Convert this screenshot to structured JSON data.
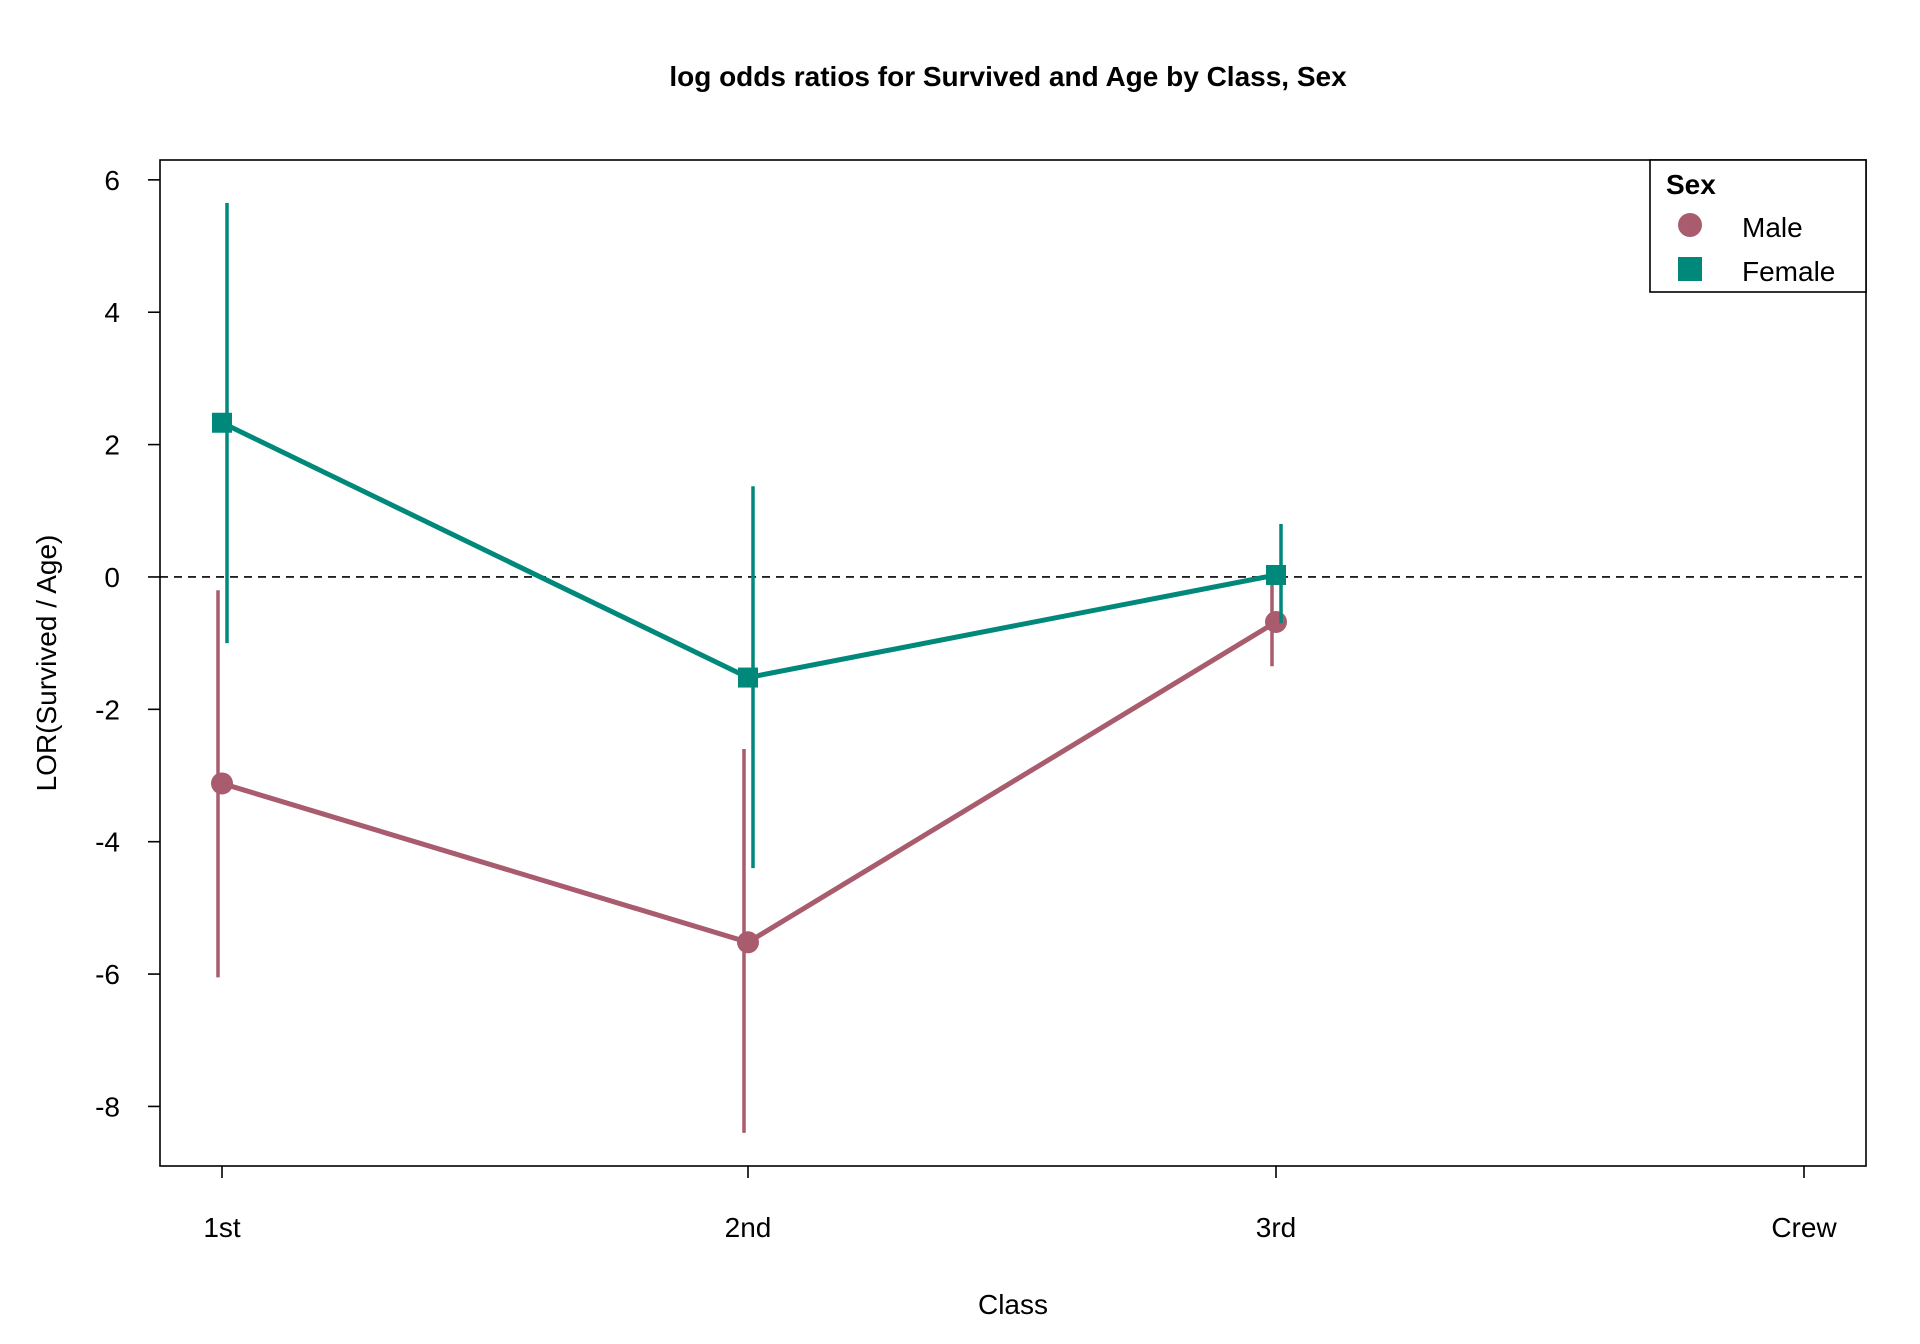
{
  "chart_data": {
    "type": "line",
    "title": "log odds ratios for Survived and Age by Class, Sex",
    "xlabel": "Class",
    "ylabel": "LOR(Survived / Age)",
    "categories": [
      "1st",
      "2nd",
      "3rd",
      "Crew"
    ],
    "ylim": [
      -8.9,
      6.3
    ],
    "yticks": [
      6,
      4,
      2,
      0,
      -2,
      -4,
      -6,
      -8
    ],
    "reference_line": 0,
    "grid": false,
    "legend": {
      "title": "Sex",
      "placement": "top-right",
      "entries": [
        "Male",
        "Female"
      ]
    },
    "series": [
      {
        "name": "Male",
        "color": "#A85C6E",
        "marker": "circle",
        "values": [
          -3.12,
          -5.52,
          -0.68,
          null
        ],
        "lower": [
          -6.05,
          -8.4,
          -1.35,
          null
        ],
        "upper": [
          -0.2,
          -2.6,
          0.0,
          null
        ]
      },
      {
        "name": "Female",
        "color": "#00897B",
        "marker": "square",
        "values": [
          2.33,
          -1.52,
          0.03,
          null
        ],
        "lower": [
          -1.0,
          -4.4,
          -0.7,
          null
        ],
        "upper": [
          5.65,
          1.37,
          0.8,
          null
        ]
      }
    ]
  }
}
